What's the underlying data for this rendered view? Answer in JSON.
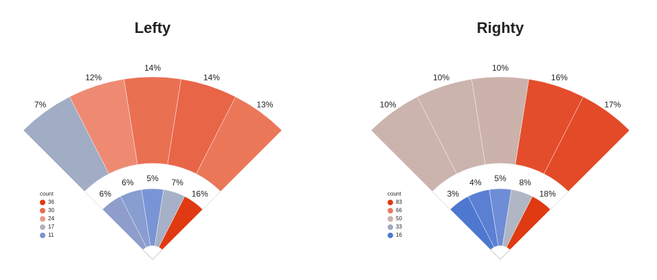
{
  "chart_data": [
    {
      "type": "fan",
      "title": "Lefty",
      "outer": {
        "values": [
          7,
          12,
          14,
          14,
          13
        ],
        "value_labels": [
          "7%",
          "12%",
          "14%",
          "14%",
          "13%"
        ],
        "colors": [
          "#a0adc4",
          "#ee8a72",
          "#ea7052",
          "#e86547",
          "#eb7759"
        ]
      },
      "inner": {
        "values": [
          6,
          6,
          5,
          7,
          16
        ],
        "value_labels": [
          "6%",
          "6%",
          "5%",
          "7%",
          "16%"
        ],
        "colors": [
          "#8e9dcb",
          "#889dd0",
          "#7a95d6",
          "#a6b0c6",
          "#e03a12"
        ]
      },
      "legend_title": "count",
      "legend": {
        "values": [
          36,
          30,
          24,
          17,
          11
        ],
        "colors": [
          "#e03a12",
          "#e96a50",
          "#eb9985",
          "#b0b3bd",
          "#7b95d0"
        ]
      }
    },
    {
      "type": "fan",
      "title": "Righty",
      "outer": {
        "values": [
          10,
          10,
          10,
          16,
          17
        ],
        "value_labels": [
          "10%",
          "10%",
          "10%",
          "16%",
          "17%"
        ],
        "colors": [
          "#cbb4ad",
          "#cbb4ad",
          "#cbb2ab",
          "#e44d2c",
          "#e34a28"
        ]
      },
      "inner": {
        "values": [
          3,
          4,
          5,
          8,
          18
        ],
        "value_labels": [
          "3%",
          "4%",
          "5%",
          "8%",
          "18%"
        ],
        "colors": [
          "#4e78d0",
          "#5a7fd3",
          "#6e8dd6",
          "#b0b6c4",
          "#e03a12"
        ]
      },
      "legend_title": "count",
      "legend": {
        "values": [
          83,
          66,
          50,
          33,
          16
        ],
        "colors": [
          "#e03a12",
          "#e97a60",
          "#c9b1aa",
          "#a0a8c0",
          "#4e78d0"
        ]
      }
    }
  ]
}
